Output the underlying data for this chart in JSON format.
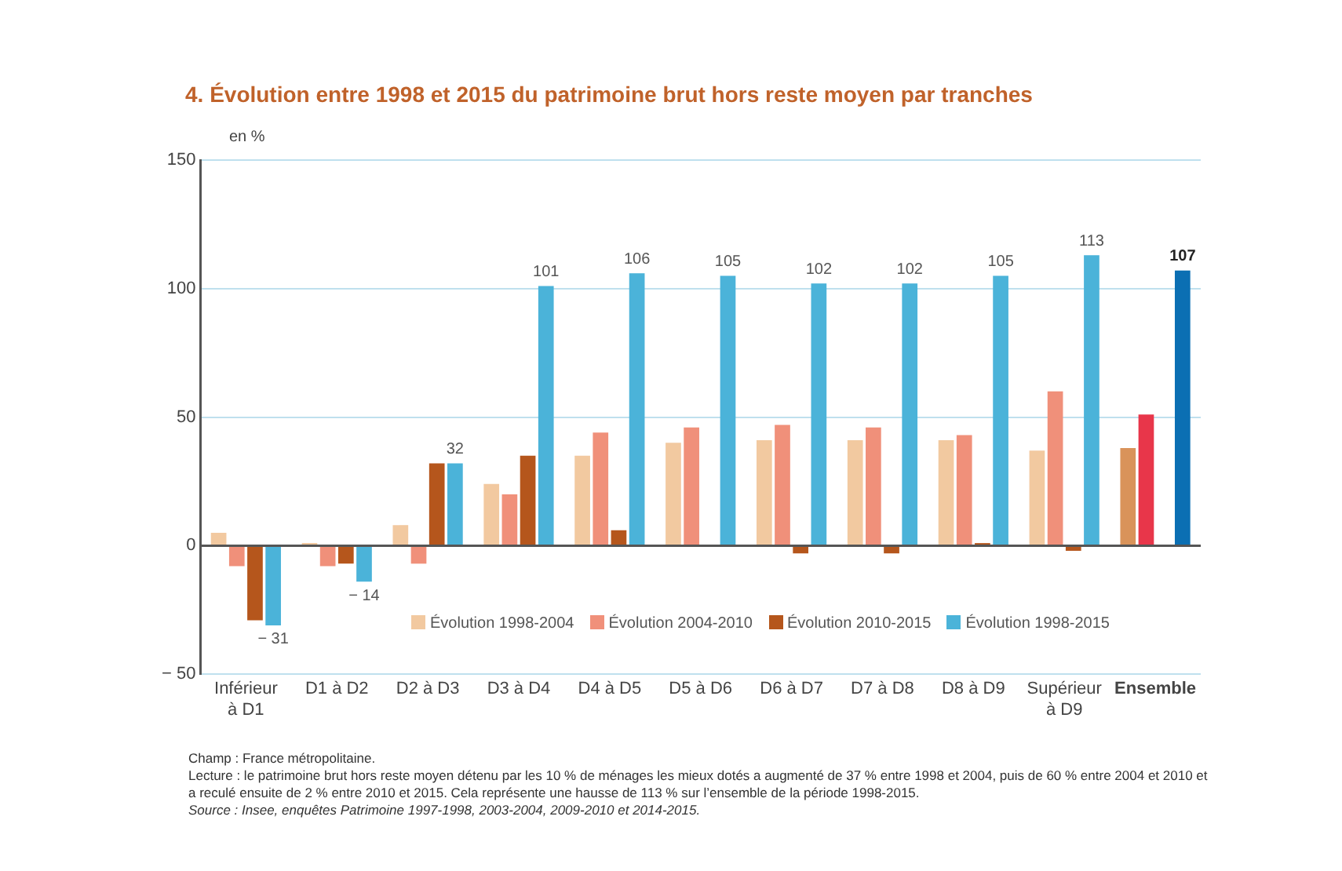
{
  "chart_data": {
    "type": "bar",
    "title": "4. Évolution entre 1998 et 2015 du patrimoine brut hors reste moyen par tranches",
    "ylabel": "en %",
    "categories": [
      "Inférieur à D1",
      "D1 à D2",
      "D2 à D3",
      "D3 à D4",
      "D4 à D5",
      "D5 à D6",
      "D6 à D7",
      "D7 à D8",
      "D8 à D9",
      "Supérieur à D9",
      "Ensemble"
    ],
    "series": [
      {
        "name": "Évolution 1998-2004",
        "color": "#f2c9a0",
        "colors": [
          "#f2c9a0",
          "#f2c9a0",
          "#f2c9a0",
          "#f2c9a0",
          "#f2c9a0",
          "#f2c9a0",
          "#f2c9a0",
          "#f2c9a0",
          "#f2c9a0",
          "#f2c9a0",
          "#d9935a"
        ],
        "values": [
          5,
          1,
          8,
          24,
          35,
          40,
          41,
          41,
          41,
          37,
          38
        ]
      },
      {
        "name": "Évolution 2004-2010",
        "color": "#f0907a",
        "colors": [
          "#f0907a",
          "#f0907a",
          "#f0907a",
          "#f0907a",
          "#f0907a",
          "#f0907a",
          "#f0907a",
          "#f0907a",
          "#f0907a",
          "#f0907a",
          "#e8364a"
        ],
        "values": [
          -8,
          -8,
          -7,
          20,
          44,
          46,
          47,
          46,
          43,
          60,
          51
        ]
      },
      {
        "name": "Évolution 2010-2015",
        "color": "#b5561c",
        "values": [
          -29,
          -7,
          32,
          35,
          6,
          0,
          -3,
          -3,
          1,
          -2,
          null
        ]
      },
      {
        "name": "Évolution 1998-2015",
        "color": "#4bb3d9",
        "colors": [
          "#4bb3d9",
          "#4bb3d9",
          "#4bb3d9",
          "#4bb3d9",
          "#4bb3d9",
          "#4bb3d9",
          "#4bb3d9",
          "#4bb3d9",
          "#4bb3d9",
          "#4bb3d9",
          "#0b6fb3"
        ],
        "values": [
          -31,
          -14,
          32,
          101,
          106,
          105,
          102,
          102,
          105,
          113,
          107
        ],
        "value_labels": [
          "− 31",
          "− 14",
          "32",
          "101",
          "106",
          "105",
          "102",
          "102",
          "105",
          "113",
          "107"
        ]
      }
    ],
    "ylim": [
      -50,
      150
    ],
    "yticks": [
      {
        "value": -50,
        "label": "− 50"
      },
      0,
      50,
      100,
      150
    ],
    "grid": "y",
    "legend": "bottom",
    "annotations": [
      "Champ : France métropolitaine.",
      "Lecture : le patrimoine brut hors reste moyen détenu par les 10 % de ménages les mieux dotés a augmenté de 37 % entre 1998 et 2004, puis de 60 % entre 2004 et 2010 et a reculé ensuite de 2 % entre 2010 et 2015. Cela représente une hausse de 113 % sur l’ensemble de la période 1998-2015.",
      "Source : Insee, enquêtes Patrimoine 1997-1998, 2003-2004, 2009-2010 et 2014-2015."
    ]
  }
}
